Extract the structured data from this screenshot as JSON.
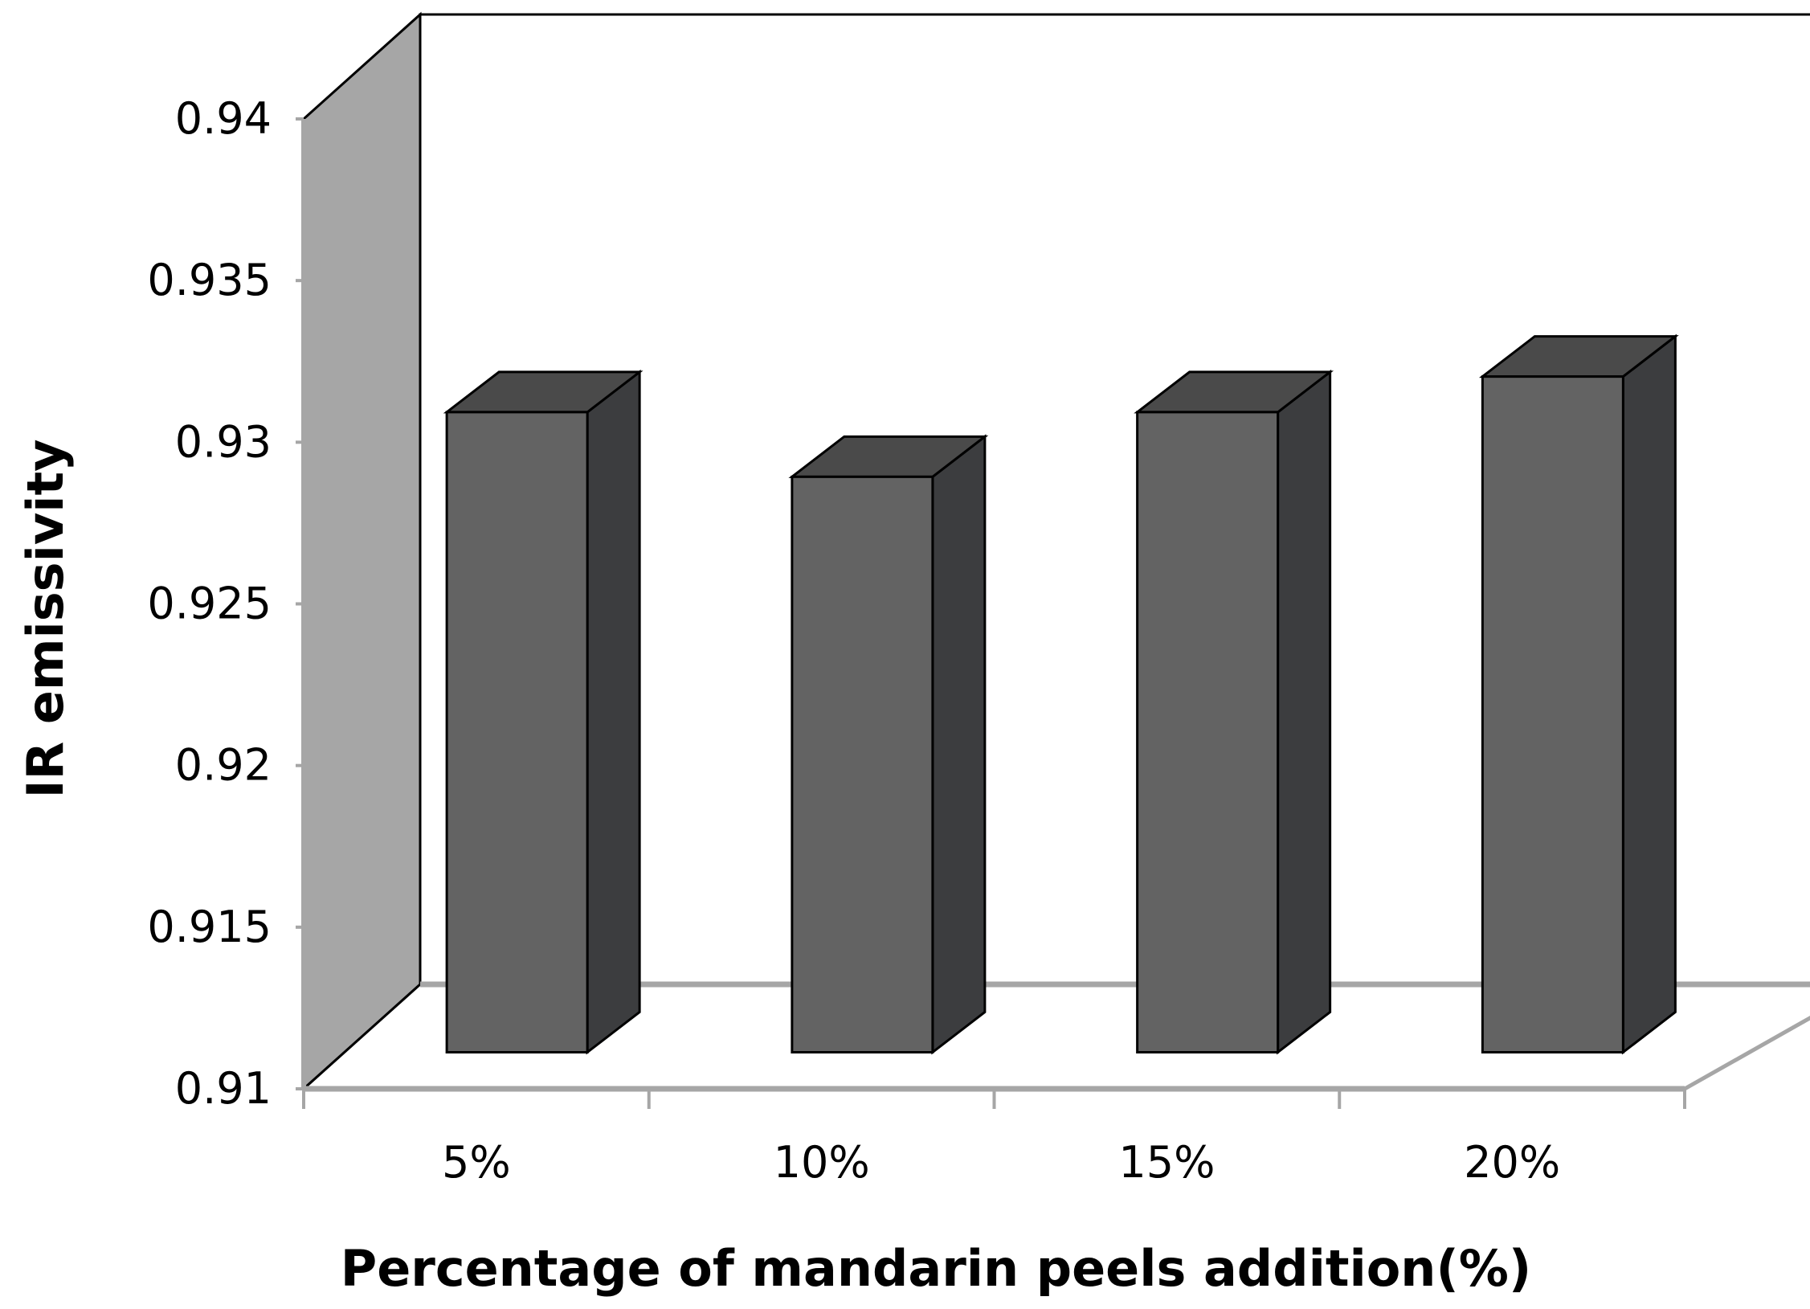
{
  "chart_data": {
    "type": "bar",
    "three_d": true,
    "title": "",
    "xlabel": "Percentage of  mandarin peels addition(%)",
    "ylabel": "IR emissivity",
    "categories": [
      "5%",
      "10%",
      "15%",
      "20%"
    ],
    "values": [
      0.9298,
      0.9278,
      0.9298,
      0.9309
    ],
    "ylim": [
      0.91,
      0.94
    ],
    "yticks": [
      0.91,
      0.915,
      0.92,
      0.925,
      0.93,
      0.935,
      0.94
    ],
    "ytick_labels": [
      "0.91",
      "0.915",
      "0.92",
      "0.925",
      "0.93",
      "0.935",
      "0.94"
    ],
    "grid": false,
    "legend": "none",
    "colors": {
      "bar_front": "#636363",
      "bar_side": "#3c3d3f",
      "bar_top": "#4a4a4a",
      "side_wall": "#a6a6a6",
      "back_wall": "#ffffff",
      "axis_lines": "#a6a6a6"
    }
  }
}
